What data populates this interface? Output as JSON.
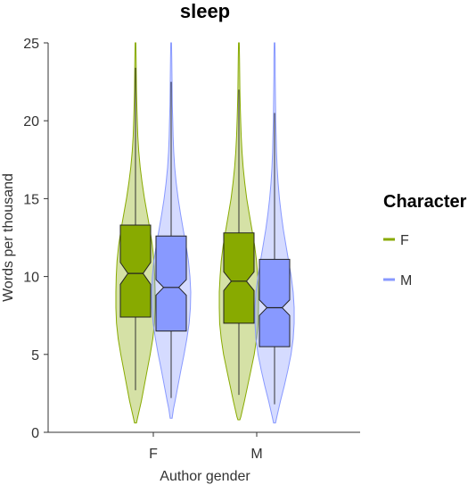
{
  "chart_data": {
    "type": "violin-box",
    "title": "sleep",
    "xlabel": "Author gender",
    "ylabel": "Words per thousand",
    "categories": [
      "F",
      "M"
    ],
    "ylim": [
      0,
      25
    ],
    "yticks": [
      0,
      5,
      10,
      15,
      20,
      25
    ],
    "legend": {
      "title": "Character",
      "placement": "right",
      "entries": [
        {
          "label": "F",
          "color": "#88aa00"
        },
        {
          "label": "M",
          "color": "#8899ff"
        }
      ]
    },
    "series": [
      {
        "name": "F",
        "color": "#88aa00",
        "groups": [
          {
            "category": "F",
            "min": 0.6,
            "max": 25,
            "whisker_low": 2.7,
            "whisker_high": 23.4,
            "q1": 7.4,
            "median": 10.2,
            "q3": 13.3,
            "notch_low": 9.5,
            "notch_high": 10.9,
            "violin": [
              [
                0.6,
                0.05
              ],
              [
                1,
                0.12
              ],
              [
                2,
                0.3
              ],
              [
                3,
                0.45
              ],
              [
                4,
                0.6
              ],
              [
                5,
                0.75
              ],
              [
                6,
                0.88
              ],
              [
                7,
                0.97
              ],
              [
                8,
                1.0
              ],
              [
                9,
                1.0
              ],
              [
                10,
                0.98
              ],
              [
                11,
                0.94
              ],
              [
                12,
                0.86
              ],
              [
                13,
                0.74
              ],
              [
                14,
                0.6
              ],
              [
                15,
                0.46
              ],
              [
                16,
                0.34
              ],
              [
                17,
                0.24
              ],
              [
                18,
                0.17
              ],
              [
                19,
                0.12
              ],
              [
                20,
                0.09
              ],
              [
                21,
                0.07
              ],
              [
                22,
                0.05
              ],
              [
                23,
                0.04
              ],
              [
                24,
                0.03
              ],
              [
                25,
                0.02
              ]
            ]
          },
          {
            "category": "M",
            "min": 0.8,
            "max": 25,
            "whisker_low": 2.4,
            "whisker_high": 22.0,
            "q1": 7.0,
            "median": 9.7,
            "q3": 12.8,
            "notch_low": 9.1,
            "notch_high": 10.3,
            "violin": [
              [
                0.8,
                0.05
              ],
              [
                1,
                0.1
              ],
              [
                2,
                0.28
              ],
              [
                3,
                0.45
              ],
              [
                4,
                0.62
              ],
              [
                5,
                0.78
              ],
              [
                6,
                0.9
              ],
              [
                7,
                0.98
              ],
              [
                8,
                1.0
              ],
              [
                9,
                1.0
              ],
              [
                10,
                0.96
              ],
              [
                11,
                0.9
              ],
              [
                12,
                0.8
              ],
              [
                13,
                0.67
              ],
              [
                14,
                0.53
              ],
              [
                15,
                0.4
              ],
              [
                16,
                0.3
              ],
              [
                17,
                0.22
              ],
              [
                18,
                0.16
              ],
              [
                19,
                0.12
              ],
              [
                20,
                0.09
              ],
              [
                21,
                0.07
              ],
              [
                22,
                0.05
              ],
              [
                23,
                0.04
              ],
              [
                24,
                0.03
              ],
              [
                25,
                0.02
              ]
            ]
          }
        ]
      },
      {
        "name": "M",
        "color": "#8899ff",
        "groups": [
          {
            "category": "F",
            "min": 0.9,
            "max": 25,
            "whisker_low": 2.2,
            "whisker_high": 22.5,
            "q1": 6.5,
            "median": 9.3,
            "q3": 12.6,
            "notch_low": 8.8,
            "notch_high": 9.8,
            "violin": [
              [
                0.9,
                0.05
              ],
              [
                1.5,
                0.12
              ],
              [
                2,
                0.2
              ],
              [
                3,
                0.35
              ],
              [
                4,
                0.5
              ],
              [
                5,
                0.66
              ],
              [
                6,
                0.8
              ],
              [
                7,
                0.92
              ],
              [
                8,
                0.98
              ],
              [
                9,
                1.0
              ],
              [
                10,
                0.96
              ],
              [
                11,
                0.88
              ],
              [
                12,
                0.76
              ],
              [
                13,
                0.62
              ],
              [
                14,
                0.48
              ],
              [
                15,
                0.36
              ],
              [
                16,
                0.26
              ],
              [
                17,
                0.18
              ],
              [
                18,
                0.13
              ],
              [
                19,
                0.1
              ],
              [
                20,
                0.08
              ],
              [
                21,
                0.06
              ],
              [
                22,
                0.05
              ],
              [
                23,
                0.04
              ],
              [
                24,
                0.03
              ],
              [
                25,
                0.02
              ]
            ]
          },
          {
            "category": "M",
            "min": 0.6,
            "max": 25,
            "whisker_low": 1.8,
            "whisker_high": 20.5,
            "q1": 5.5,
            "median": 8.0,
            "q3": 11.1,
            "notch_low": 7.5,
            "notch_high": 8.5,
            "violin": [
              [
                0.6,
                0.05
              ],
              [
                1,
                0.12
              ],
              [
                2,
                0.3
              ],
              [
                3,
                0.5
              ],
              [
                4,
                0.68
              ],
              [
                5,
                0.84
              ],
              [
                6,
                0.95
              ],
              [
                7,
                1.0
              ],
              [
                8,
                1.0
              ],
              [
                9,
                0.95
              ],
              [
                10,
                0.85
              ],
              [
                11,
                0.72
              ],
              [
                12,
                0.58
              ],
              [
                13,
                0.45
              ],
              [
                14,
                0.34
              ],
              [
                15,
                0.25
              ],
              [
                16,
                0.18
              ],
              [
                17,
                0.13
              ],
              [
                18,
                0.1
              ],
              [
                19,
                0.08
              ],
              [
                20,
                0.06
              ],
              [
                21,
                0.05
              ],
              [
                22,
                0.04
              ],
              [
                23,
                0.03
              ],
              [
                24,
                0.03
              ],
              [
                25,
                0.02
              ]
            ]
          }
        ]
      }
    ]
  }
}
